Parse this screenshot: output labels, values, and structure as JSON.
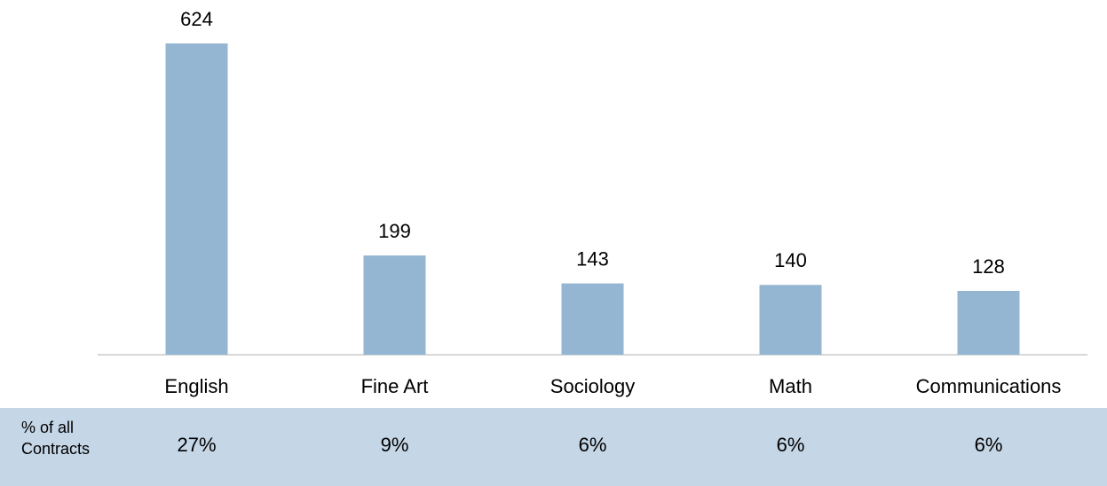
{
  "chart_data": {
    "type": "bar",
    "categories": [
      "English",
      "Fine Art",
      "Sociology",
      "Math",
      "Communications"
    ],
    "values": [
      624,
      199,
      143,
      140,
      128
    ],
    "color": "#95b6d3",
    "table_row": {
      "label": "% of all Contracts",
      "cells": [
        "27%",
        "9%",
        "6%",
        "6%",
        "6%"
      ]
    }
  }
}
